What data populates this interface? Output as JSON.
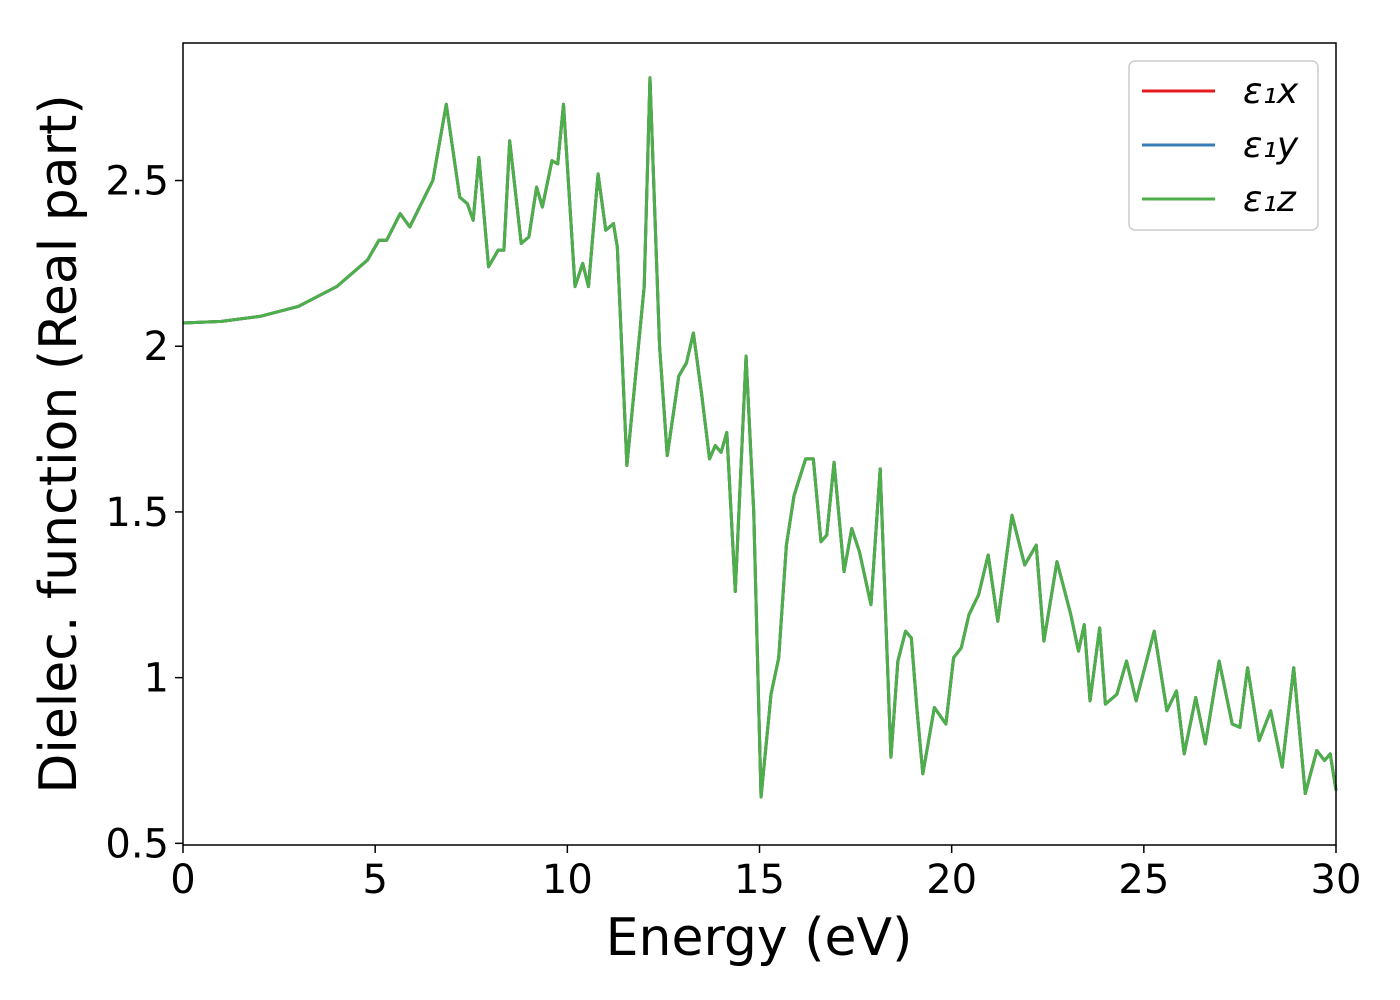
{
  "chart_data": {
    "type": "line",
    "xlabel": "Energy (eV)",
    "ylabel": "Dielec. function (Real part)",
    "xlim": [
      0,
      30
    ],
    "ylim": [
      0.495,
      2.915
    ],
    "xticks": [
      0,
      5,
      10,
      15,
      20,
      25,
      30
    ],
    "yticks": [
      0.5,
      1.0,
      1.5,
      2.0,
      2.5
    ],
    "legend": "upper right",
    "x": [
      0,
      1,
      2,
      3,
      4,
      4.8,
      5.1,
      5.3,
      5.65,
      5.9,
      6.2,
      6.5,
      6.85,
      7.2,
      7.4,
      7.55,
      7.7,
      7.95,
      8.2,
      8.35,
      8.5,
      8.8,
      9.0,
      9.2,
      9.35,
      9.6,
      9.75,
      9.9,
      10.2,
      10.4,
      10.55,
      10.8,
      11.0,
      11.2,
      11.3,
      11.55,
      11.85,
      12.0,
      12.15,
      12.4,
      12.6,
      12.9,
      13.1,
      13.28,
      13.5,
      13.7,
      13.85,
      14.0,
      14.15,
      14.37,
      14.65,
      14.85,
      15.04,
      15.3,
      15.5,
      15.7,
      15.9,
      16.2,
      16.4,
      16.6,
      16.75,
      16.94,
      17.2,
      17.4,
      17.6,
      17.9,
      18.14,
      18.42,
      18.6,
      18.8,
      18.95,
      19.1,
      19.25,
      19.55,
      19.85,
      20.05,
      20.25,
      20.45,
      20.7,
      20.95,
      21.2,
      21.57,
      21.9,
      22.2,
      22.4,
      22.74,
      23.1,
      23.3,
      23.45,
      23.6,
      23.85,
      24.0,
      24.3,
      24.55,
      24.8,
      25.27,
      25.6,
      25.85,
      26.05,
      26.35,
      26.6,
      26.96,
      27.3,
      27.5,
      27.7,
      28.0,
      28.3,
      28.6,
      28.9,
      29.2,
      29.5,
      29.7,
      29.85,
      30.0
    ],
    "series": [
      {
        "name": "ε₁x",
        "color": "#e41a1c",
        "values": [
          2.07,
          2.075,
          2.09,
          2.12,
          2.18,
          2.26,
          2.32,
          2.32,
          2.4,
          2.36,
          2.43,
          2.5,
          2.73,
          2.45,
          2.43,
          2.38,
          2.57,
          2.24,
          2.29,
          2.29,
          2.62,
          2.31,
          2.33,
          2.48,
          2.42,
          2.56,
          2.55,
          2.73,
          2.18,
          2.25,
          2.18,
          2.52,
          2.35,
          2.37,
          2.3,
          1.64,
          2.0,
          2.18,
          2.81,
          2.0,
          1.67,
          1.91,
          1.95,
          2.04,
          1.85,
          1.66,
          1.7,
          1.68,
          1.74,
          1.26,
          1.97,
          1.5,
          0.64,
          0.95,
          1.06,
          1.4,
          1.55,
          1.66,
          1.66,
          1.41,
          1.43,
          1.65,
          1.32,
          1.45,
          1.38,
          1.22,
          1.63,
          0.76,
          1.05,
          1.14,
          1.12,
          0.9,
          0.71,
          0.91,
          0.86,
          1.06,
          1.09,
          1.19,
          1.25,
          1.37,
          1.17,
          1.49,
          1.34,
          1.4,
          1.11,
          1.35,
          1.19,
          1.08,
          1.16,
          0.93,
          1.15,
          0.92,
          0.95,
          1.05,
          0.93,
          1.14,
          0.9,
          0.96,
          0.77,
          0.94,
          0.8,
          1.05,
          0.86,
          0.85,
          1.03,
          0.81,
          0.9,
          0.73,
          1.03,
          0.65,
          0.78,
          0.75,
          0.77,
          0.66
        ]
      },
      {
        "name": "ε₁y",
        "color": "#377eb8",
        "values": [
          2.07,
          2.075,
          2.09,
          2.12,
          2.18,
          2.26,
          2.32,
          2.32,
          2.4,
          2.36,
          2.43,
          2.5,
          2.73,
          2.45,
          2.43,
          2.38,
          2.57,
          2.24,
          2.29,
          2.29,
          2.62,
          2.31,
          2.33,
          2.48,
          2.42,
          2.56,
          2.55,
          2.73,
          2.18,
          2.25,
          2.18,
          2.52,
          2.35,
          2.37,
          2.3,
          1.64,
          2.0,
          2.18,
          2.81,
          2.0,
          1.67,
          1.91,
          1.95,
          2.04,
          1.85,
          1.66,
          1.7,
          1.68,
          1.74,
          1.26,
          1.97,
          1.5,
          0.64,
          0.95,
          1.06,
          1.4,
          1.55,
          1.66,
          1.66,
          1.41,
          1.43,
          1.65,
          1.32,
          1.45,
          1.38,
          1.22,
          1.63,
          0.76,
          1.05,
          1.14,
          1.12,
          0.9,
          0.71,
          0.91,
          0.86,
          1.06,
          1.09,
          1.19,
          1.25,
          1.37,
          1.17,
          1.49,
          1.34,
          1.4,
          1.11,
          1.35,
          1.19,
          1.08,
          1.16,
          0.93,
          1.15,
          0.92,
          0.95,
          1.05,
          0.93,
          1.14,
          0.9,
          0.96,
          0.77,
          0.94,
          0.8,
          1.05,
          0.86,
          0.85,
          1.03,
          0.81,
          0.9,
          0.73,
          1.03,
          0.65,
          0.78,
          0.75,
          0.77,
          0.66
        ]
      },
      {
        "name": "ε₁z",
        "color": "#4daf4a",
        "values": [
          2.07,
          2.075,
          2.09,
          2.12,
          2.18,
          2.26,
          2.32,
          2.32,
          2.4,
          2.36,
          2.43,
          2.5,
          2.73,
          2.45,
          2.43,
          2.38,
          2.57,
          2.24,
          2.29,
          2.29,
          2.62,
          2.31,
          2.33,
          2.48,
          2.42,
          2.56,
          2.55,
          2.73,
          2.18,
          2.25,
          2.18,
          2.52,
          2.35,
          2.37,
          2.3,
          1.64,
          2.0,
          2.18,
          2.81,
          2.0,
          1.67,
          1.91,
          1.95,
          2.04,
          1.85,
          1.66,
          1.7,
          1.68,
          1.74,
          1.26,
          1.97,
          1.5,
          0.64,
          0.95,
          1.06,
          1.4,
          1.55,
          1.66,
          1.66,
          1.41,
          1.43,
          1.65,
          1.32,
          1.45,
          1.38,
          1.22,
          1.63,
          0.76,
          1.05,
          1.14,
          1.12,
          0.9,
          0.71,
          0.91,
          0.86,
          1.06,
          1.09,
          1.19,
          1.25,
          1.37,
          1.17,
          1.49,
          1.34,
          1.4,
          1.11,
          1.35,
          1.19,
          1.08,
          1.16,
          0.93,
          1.15,
          0.92,
          0.95,
          1.05,
          0.93,
          1.14,
          0.9,
          0.96,
          0.77,
          0.94,
          0.8,
          1.05,
          0.86,
          0.85,
          1.03,
          0.81,
          0.9,
          0.73,
          1.03,
          0.65,
          0.78,
          0.75,
          0.77,
          0.66
        ]
      }
    ]
  }
}
